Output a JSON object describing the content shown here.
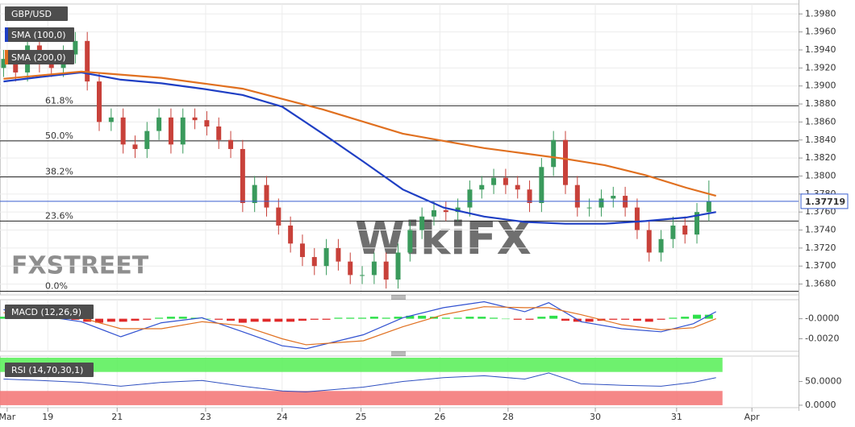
{
  "chart_data": [
    {
      "type": "candlestick",
      "title": "GBP/USD",
      "xlim": [
        -0.3,
        66.5
      ],
      "xticks": [
        {
          "value": 0.3,
          "label": "Mar"
        },
        {
          "value": 3.7,
          "label": "19"
        },
        {
          "value": 9.5,
          "label": "21"
        },
        {
          "value": 16.9,
          "label": "23"
        },
        {
          "value": 23.3,
          "label": "24"
        },
        {
          "value": 29.9,
          "label": "25"
        },
        {
          "value": 36.5,
          "label": "26"
        },
        {
          "value": 42.2,
          "label": "28"
        },
        {
          "value": 49.5,
          "label": "30"
        },
        {
          "value": 56.3,
          "label": "31"
        },
        {
          "value": 62.6,
          "label": "Apr"
        }
      ],
      "ylim": [
        1.3668,
        1.3991
      ],
      "yticks": [
        {
          "value": 1.398,
          "label": "1.3980"
        },
        {
          "value": 1.396,
          "label": "1.3960"
        },
        {
          "value": 1.394,
          "label": "1.3940"
        },
        {
          "value": 1.392,
          "label": "1.3920"
        },
        {
          "value": 1.39,
          "label": "1.3900"
        },
        {
          "value": 1.388,
          "label": "1.3880"
        },
        {
          "value": 1.386,
          "label": "1.3860"
        },
        {
          "value": 1.384,
          "label": "1.3840"
        },
        {
          "value": 1.382,
          "label": "1.3820"
        },
        {
          "value": 1.38,
          "label": "1.3800"
        },
        {
          "value": 1.378,
          "label": "1.3780"
        },
        {
          "value": 1.376,
          "label": "1.3760"
        },
        {
          "value": 1.374,
          "label": "1.3740"
        },
        {
          "value": 1.372,
          "label": "1.3720"
        },
        {
          "value": 1.37,
          "label": "1.3700"
        },
        {
          "value": 1.368,
          "label": "1.3680"
        }
      ],
      "grid": true,
      "up_color": "#3a9a5c",
      "down_color": "#c8413a",
      "open": [
        1.392,
        1.393,
        1.3915,
        1.3945,
        1.3925,
        1.392,
        1.3935,
        1.395,
        1.3905,
        1.386,
        1.3865,
        1.3835,
        1.383,
        1.385,
        1.3865,
        1.3835,
        1.3865,
        1.3862,
        1.3855,
        1.384,
        1.383,
        1.377,
        1.379,
        1.3765,
        1.3745,
        1.3725,
        1.371,
        1.37,
        1.372,
        1.3705,
        1.369,
        1.369,
        1.3705,
        1.3685,
        1.3715,
        1.374,
        1.3755,
        1.3762,
        1.376,
        1.3765,
        1.3785,
        1.379,
        1.3798,
        1.379,
        1.3785,
        1.377,
        1.381,
        1.384,
        1.379,
        1.3765,
        1.3765,
        1.3775,
        1.3778,
        1.3765,
        1.374,
        1.3715,
        1.373,
        1.3745,
        1.3735,
        1.376
      ],
      "high": [
        1.394,
        1.394,
        1.3955,
        1.3955,
        1.3935,
        1.3945,
        1.396,
        1.396,
        1.3915,
        1.3875,
        1.3875,
        1.3845,
        1.386,
        1.3875,
        1.3875,
        1.3875,
        1.3875,
        1.3872,
        1.3865,
        1.385,
        1.384,
        1.38,
        1.38,
        1.3775,
        1.3755,
        1.3735,
        1.372,
        1.373,
        1.373,
        1.3715,
        1.37,
        1.3715,
        1.3715,
        1.3725,
        1.375,
        1.3765,
        1.3772,
        1.3772,
        1.3775,
        1.3795,
        1.38,
        1.3808,
        1.3808,
        1.38,
        1.3795,
        1.382,
        1.385,
        1.385,
        1.38,
        1.3775,
        1.3785,
        1.3788,
        1.3788,
        1.3775,
        1.375,
        1.374,
        1.3755,
        1.3755,
        1.377,
        1.3795
      ],
      "low": [
        1.391,
        1.3905,
        1.3905,
        1.3915,
        1.391,
        1.391,
        1.3925,
        1.3895,
        1.385,
        1.385,
        1.3825,
        1.382,
        1.382,
        1.384,
        1.3825,
        1.3825,
        1.3852,
        1.3845,
        1.383,
        1.382,
        1.376,
        1.376,
        1.3755,
        1.3735,
        1.3715,
        1.37,
        1.369,
        1.369,
        1.3695,
        1.368,
        1.368,
        1.368,
        1.3675,
        1.3675,
        1.3705,
        1.373,
        1.3745,
        1.375,
        1.375,
        1.3755,
        1.3775,
        1.378,
        1.378,
        1.3775,
        1.376,
        1.376,
        1.38,
        1.378,
        1.3755,
        1.3755,
        1.3755,
        1.3765,
        1.3755,
        1.373,
        1.3705,
        1.3705,
        1.372,
        1.3725,
        1.3725,
        1.375
      ],
      "close": [
        1.393,
        1.3915,
        1.3945,
        1.3925,
        1.392,
        1.3935,
        1.395,
        1.3905,
        1.386,
        1.3865,
        1.3835,
        1.383,
        1.385,
        1.3865,
        1.3835,
        1.3865,
        1.3862,
        1.3855,
        1.384,
        1.383,
        1.377,
        1.379,
        1.3765,
        1.3745,
        1.3725,
        1.371,
        1.37,
        1.372,
        1.3705,
        1.369,
        1.369,
        1.3705,
        1.3685,
        1.3715,
        1.374,
        1.3755,
        1.3762,
        1.376,
        1.3765,
        1.3785,
        1.379,
        1.3798,
        1.379,
        1.3785,
        1.377,
        1.381,
        1.384,
        1.379,
        1.3765,
        1.3765,
        1.3775,
        1.3778,
        1.3765,
        1.374,
        1.3715,
        1.373,
        1.3745,
        1.3735,
        1.376,
        1.3772
      ],
      "series": [
        {
          "name": "SMA (100,0)",
          "color": "#1f3fc4",
          "x": [
            0,
            3.1,
            6.5,
            9.8,
            13.2,
            16.6,
            20,
            23.3,
            26.7,
            30.1,
            33.4,
            36.8,
            40.2,
            43.6,
            47,
            50.3,
            53.7,
            57.1,
            59.6
          ],
          "values": [
            1.3905,
            1.391,
            1.3915,
            1.3907,
            1.3903,
            1.3897,
            1.389,
            1.3877,
            1.3847,
            1.3816,
            1.3785,
            1.3765,
            1.3755,
            1.3749,
            1.3747,
            1.3747,
            1.375,
            1.3754,
            1.376
          ]
        },
        {
          "name": "SMA (200,0)",
          "color": "#e07020",
          "x": [
            0,
            6.5,
            13.2,
            20,
            26.7,
            33.4,
            36.8,
            40.2,
            43.6,
            47,
            50.3,
            53.7,
            57.1,
            59.6
          ],
          "values": [
            1.3908,
            1.3916,
            1.3909,
            1.3897,
            1.3874,
            1.3847,
            1.3839,
            1.3831,
            1.3825,
            1.3819,
            1.3812,
            1.3801,
            1.3787,
            1.3778
          ]
        }
      ],
      "levels": [
        {
          "label": "61.8%",
          "value": 1.3878
        },
        {
          "label": "50.0%",
          "value": 1.3839
        },
        {
          "label": "38.2%",
          "value": 1.3799
        },
        {
          "label": "23.6%",
          "value": 1.375
        },
        {
          "label": "0.0%",
          "value": 1.3672
        }
      ],
      "last_price": {
        "value": 1.37719,
        "label": "1.37719"
      },
      "watermarks": [
        "FXSTREET",
        "WikiFX"
      ]
    },
    {
      "type": "macd",
      "title": "MACD (12,26,9)",
      "ylim": [
        -0.00325,
        0.0019
      ],
      "yticks": [
        {
          "value": 0,
          "label": "-0.0000"
        },
        {
          "value": -0.002,
          "label": "-0.0020"
        }
      ],
      "up_color": "#2ee04a",
      "down_color": "#e02a2a",
      "histogram": [
        0.0002,
        0.0002,
        0.0001,
        0.0001,
        0.0001,
        0.0,
        -0.0001,
        -0.0003,
        -0.0004,
        -0.0003,
        -0.0003,
        -0.0002,
        -0.0001,
        0.0001,
        0.0002,
        0.0002,
        0.0001,
        0.0,
        -0.0001,
        -0.0002,
        -0.0004,
        -0.0003,
        -0.0003,
        -0.0003,
        -0.0003,
        -0.0002,
        -0.0001,
        -0.0001,
        0.0001,
        0.0001,
        0.0001,
        0.0002,
        0.0001,
        0.0002,
        0.0003,
        0.0003,
        0.0002,
        0.0001,
        0.0001,
        0.0002,
        0.0002,
        0.0001,
        0.0,
        -0.0001,
        -0.0001,
        0.0002,
        0.0003,
        -0.0002,
        -0.0003,
        -0.0003,
        -0.0002,
        -0.0001,
        -0.0001,
        -0.0002,
        -0.0003,
        -0.0001,
        0.0001,
        0.0002,
        0.0004,
        0.0004
      ],
      "series": [
        {
          "name": "MACD",
          "color": "#3050d0",
          "x": [
            0,
            3.1,
            6.5,
            9.8,
            13.2,
            16.6,
            20,
            23.3,
            25.3,
            30.1,
            33.4,
            36.8,
            40.2,
            43.6,
            45.6,
            48.3,
            51.7,
            55,
            57.7,
            59.6
          ],
          "values": [
            0.0009,
            0.0003,
            -0.0003,
            -0.0018,
            -0.0004,
            0.0001,
            -0.0013,
            -0.0027,
            -0.003,
            -0.0016,
            0.0001,
            0.0011,
            0.0017,
            0.0007,
            0.0016,
            -0.0003,
            -0.001,
            -0.0013,
            -0.0005,
            0.0007
          ]
        },
        {
          "name": "Signal",
          "color": "#e07020",
          "x": [
            0,
            3.1,
            6.5,
            9.8,
            13.2,
            16.6,
            20,
            23.3,
            25.3,
            30.1,
            33.4,
            36.8,
            40.2,
            43.6,
            45.6,
            48.3,
            51.7,
            55,
            57.7,
            59.6
          ],
          "values": [
            0.0006,
            0.0005,
            0.0001,
            -0.001,
            -0.001,
            -0.0003,
            -0.0007,
            -0.002,
            -0.0026,
            -0.0022,
            -0.0008,
            0.0004,
            0.0012,
            0.0011,
            0.0011,
            0.0004,
            -0.0006,
            -0.0011,
            -0.0009,
            0.0
          ]
        }
      ]
    },
    {
      "type": "rsi",
      "title": "RSI (14,70,30,1)",
      "ylim": [
        -5.2,
        103.4
      ],
      "yticks": [
        {
          "value": 50,
          "label": "50.0000"
        },
        {
          "value": 0,
          "label": "0.0000"
        }
      ],
      "bands": [
        {
          "from": 70,
          "to": 100,
          "color": "#5ef05e"
        },
        {
          "from": 0,
          "to": 30,
          "color": "#f47a7a"
        }
      ],
      "series": [
        {
          "name": "RSI",
          "color": "#3050c0",
          "x": [
            0,
            3.1,
            6.5,
            9.8,
            13.2,
            16.6,
            20,
            23.3,
            25.3,
            30.1,
            33.4,
            36.8,
            40.2,
            43.6,
            45.6,
            48.3,
            51.7,
            55,
            57.7,
            59.6
          ],
          "values": [
            55,
            52,
            48,
            40,
            48,
            52,
            40,
            30,
            28,
            38,
            50,
            58,
            62,
            55,
            68,
            45,
            42,
            40,
            48,
            58
          ]
        }
      ]
    }
  ]
}
